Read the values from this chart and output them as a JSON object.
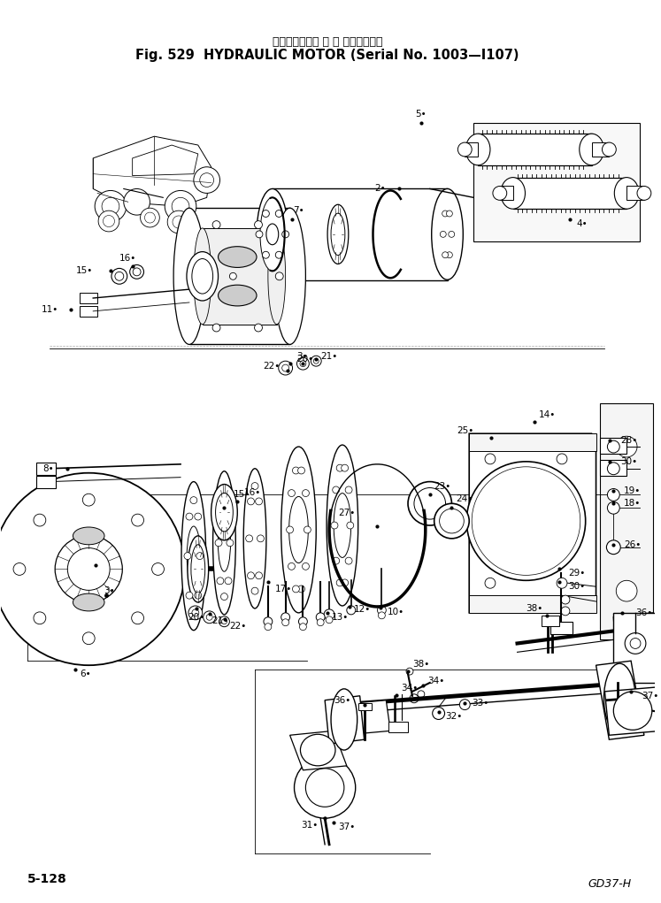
{
  "title_japanese": "ハイドロリック モ ー タ（適用号機",
  "title_english": "Fig. 529  HYDRAULIC MOTOR (Serial No. 1003—I107)",
  "page_number": "5-128",
  "figure_code": "GD37-H",
  "bg_color": "#ffffff",
  "text_color": "#000000",
  "fig_width": 7.47,
  "fig_height": 10.21,
  "dpi": 100
}
